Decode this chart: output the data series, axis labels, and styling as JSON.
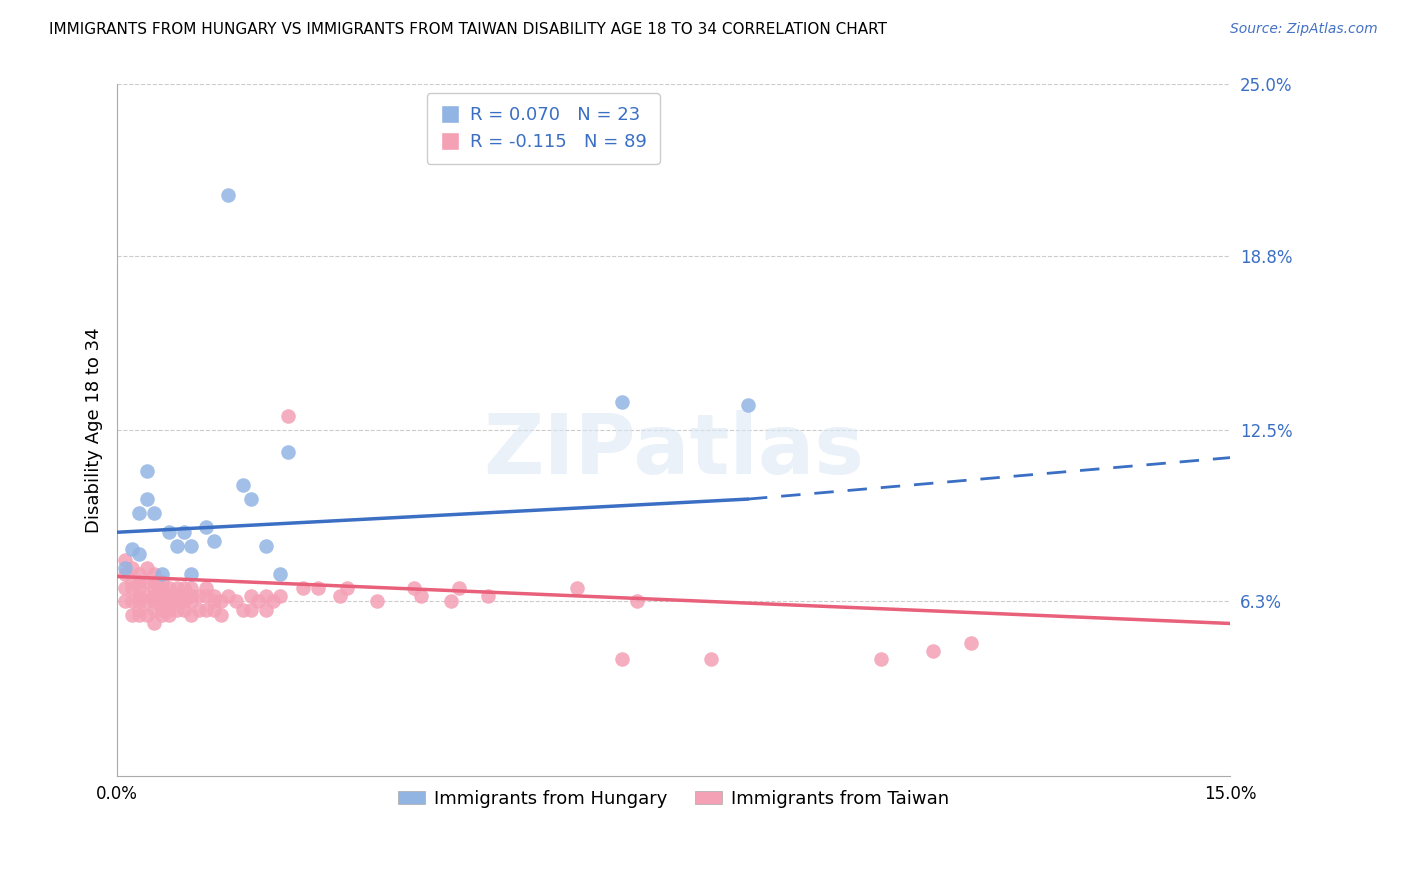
{
  "title": "IMMIGRANTS FROM HUNGARY VS IMMIGRANTS FROM TAIWAN DISABILITY AGE 18 TO 34 CORRELATION CHART",
  "source_text": "Source: ZipAtlas.com",
  "ylabel": "Disability Age 18 to 34",
  "xlim": [
    0.0,
    0.15
  ],
  "ylim": [
    0.0,
    0.25
  ],
  "x_ticks": [
    0.0,
    0.05,
    0.1,
    0.15
  ],
  "x_tick_labels": [
    "0.0%",
    "",
    "",
    "15.0%"
  ],
  "y_tick_right": [
    0.063,
    0.125,
    0.188,
    0.25
  ],
  "y_tick_right_labels": [
    "6.3%",
    "12.5%",
    "18.8%",
    "25.0%"
  ],
  "hungary_R": "0.070",
  "hungary_N": "23",
  "taiwan_R": "-0.115",
  "taiwan_N": "89",
  "hungary_color": "#92b4e3",
  "taiwan_color": "#f4a0b5",
  "hungary_line_color": "#3a6fc4",
  "taiwan_line_color": "#e8607a",
  "watermark": "ZIPatlas",
  "hungary_line_x0": 0.0,
  "hungary_line_y0": 0.088,
  "hungary_line_x1": 0.085,
  "hungary_line_y1": 0.1,
  "hungary_line_dash_x1": 0.15,
  "hungary_line_dash_y1": 0.115,
  "taiwan_line_x0": 0.0,
  "taiwan_line_y0": 0.072,
  "taiwan_line_x1": 0.15,
  "taiwan_line_y1": 0.055,
  "hungary_points_x": [
    0.001,
    0.002,
    0.003,
    0.004,
    0.005,
    0.006,
    0.007,
    0.008,
    0.009,
    0.01,
    0.012,
    0.013,
    0.015,
    0.017,
    0.018,
    0.02,
    0.022,
    0.023,
    0.068,
    0.085,
    0.003,
    0.004,
    0.01
  ],
  "hungary_points_y": [
    0.075,
    0.082,
    0.08,
    0.11,
    0.095,
    0.073,
    0.088,
    0.083,
    0.088,
    0.083,
    0.09,
    0.085,
    0.21,
    0.105,
    0.1,
    0.083,
    0.073,
    0.117,
    0.135,
    0.134,
    0.095,
    0.1,
    0.073
  ],
  "taiwan_points_x": [
    0.001,
    0.001,
    0.001,
    0.001,
    0.002,
    0.002,
    0.002,
    0.002,
    0.002,
    0.003,
    0.003,
    0.003,
    0.003,
    0.003,
    0.003,
    0.003,
    0.004,
    0.004,
    0.004,
    0.004,
    0.004,
    0.005,
    0.005,
    0.005,
    0.005,
    0.005,
    0.005,
    0.005,
    0.006,
    0.006,
    0.006,
    0.006,
    0.006,
    0.006,
    0.007,
    0.007,
    0.007,
    0.007,
    0.007,
    0.008,
    0.008,
    0.008,
    0.008,
    0.009,
    0.009,
    0.009,
    0.009,
    0.01,
    0.01,
    0.01,
    0.01,
    0.011,
    0.011,
    0.012,
    0.012,
    0.012,
    0.013,
    0.013,
    0.013,
    0.014,
    0.014,
    0.015,
    0.016,
    0.017,
    0.018,
    0.018,
    0.019,
    0.02,
    0.02,
    0.021,
    0.022,
    0.023,
    0.025,
    0.027,
    0.03,
    0.031,
    0.035,
    0.04,
    0.041,
    0.045,
    0.046,
    0.05,
    0.062,
    0.068,
    0.07,
    0.08,
    0.103,
    0.11,
    0.115
  ],
  "taiwan_points_y": [
    0.073,
    0.078,
    0.068,
    0.063,
    0.075,
    0.07,
    0.068,
    0.063,
    0.058,
    0.073,
    0.07,
    0.068,
    0.065,
    0.063,
    0.06,
    0.058,
    0.075,
    0.07,
    0.065,
    0.063,
    0.058,
    0.073,
    0.07,
    0.068,
    0.065,
    0.063,
    0.06,
    0.055,
    0.07,
    0.068,
    0.065,
    0.063,
    0.06,
    0.058,
    0.068,
    0.065,
    0.063,
    0.06,
    0.058,
    0.068,
    0.065,
    0.063,
    0.06,
    0.068,
    0.065,
    0.063,
    0.06,
    0.068,
    0.065,
    0.063,
    0.058,
    0.065,
    0.06,
    0.068,
    0.065,
    0.06,
    0.065,
    0.063,
    0.06,
    0.063,
    0.058,
    0.065,
    0.063,
    0.06,
    0.065,
    0.06,
    0.063,
    0.065,
    0.06,
    0.063,
    0.065,
    0.13,
    0.068,
    0.068,
    0.065,
    0.068,
    0.063,
    0.068,
    0.065,
    0.063,
    0.068,
    0.065,
    0.068,
    0.042,
    0.063,
    0.042,
    0.042,
    0.045,
    0.048
  ]
}
